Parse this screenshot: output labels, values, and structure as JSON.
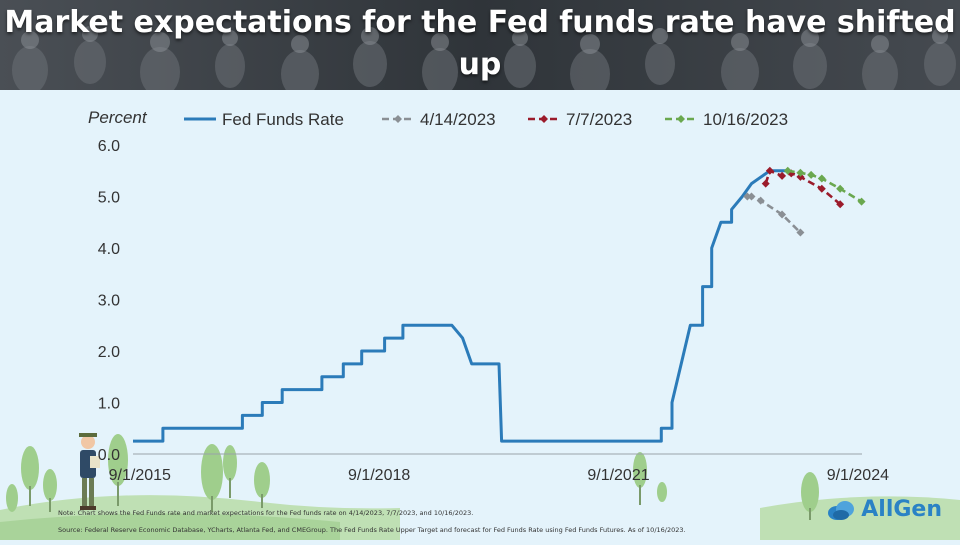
{
  "header": {
    "title": "Market expectations for the Fed funds rate have shifted up"
  },
  "footer": {
    "note": "Note: Chart shows the Fed Funds rate and market expectations for the Fed funds rate on 4/14/2023, 7/7/2023, and 10/16/2023.",
    "source": "Source: Federal Reserve Economic Database, YCharts, Atlanta Fed, and CMEGroup. The Fed Funds Rate Upper Target and forecast for Fed Funds Rate using Fed Funds Futures. As of 10/16/2023."
  },
  "logo": {
    "text": "AllGen"
  },
  "chart_data": {
    "type": "line",
    "title": "",
    "xlabel": "",
    "ylabel": "Percent",
    "ylim": [
      0,
      6
    ],
    "xlim": [
      "2015-08-01",
      "2024-09-20"
    ],
    "y_ticks": [
      "0.0",
      "1.0",
      "2.0",
      "3.0",
      "4.0",
      "5.0",
      "6.0"
    ],
    "y_tick_values": [
      0,
      1,
      2,
      3,
      4,
      5,
      6
    ],
    "x_ticks": [
      "9/1/2015",
      "9/1/2018",
      "9/1/2021",
      "9/1/2024"
    ],
    "x_tick_values": [
      "2015-09-01",
      "2018-09-01",
      "2021-09-01",
      "2024-09-01"
    ],
    "legend_position": "top",
    "grid": false,
    "series": [
      {
        "name": "Fed Funds Rate",
        "color": "#2b7bb9",
        "style": "solid",
        "points": [
          [
            "2015-08-01",
            0.25
          ],
          [
            "2015-12-16",
            0.25
          ],
          [
            "2015-12-16",
            0.5
          ],
          [
            "2016-12-14",
            0.5
          ],
          [
            "2016-12-14",
            0.75
          ],
          [
            "2017-03-15",
            0.75
          ],
          [
            "2017-03-15",
            1.0
          ],
          [
            "2017-06-14",
            1.0
          ],
          [
            "2017-06-14",
            1.25
          ],
          [
            "2017-12-13",
            1.25
          ],
          [
            "2017-12-13",
            1.5
          ],
          [
            "2018-03-21",
            1.5
          ],
          [
            "2018-03-21",
            1.75
          ],
          [
            "2018-06-13",
            1.75
          ],
          [
            "2018-06-13",
            2.0
          ],
          [
            "2018-09-26",
            2.0
          ],
          [
            "2018-09-26",
            2.25
          ],
          [
            "2018-12-19",
            2.25
          ],
          [
            "2018-12-19",
            2.5
          ],
          [
            "2019-07-31",
            2.5
          ],
          [
            "2019-09-18",
            2.25
          ],
          [
            "2019-10-30",
            1.75
          ],
          [
            "2020-03-03",
            1.75
          ],
          [
            "2020-03-15",
            0.25
          ],
          [
            "2022-03-16",
            0.25
          ],
          [
            "2022-03-16",
            0.5
          ],
          [
            "2022-05-04",
            0.5
          ],
          [
            "2022-05-04",
            1.0
          ],
          [
            "2022-06-15",
            1.75
          ],
          [
            "2022-07-27",
            2.5
          ],
          [
            "2022-09-21",
            2.5
          ],
          [
            "2022-09-21",
            3.25
          ],
          [
            "2022-11-02",
            3.25
          ],
          [
            "2022-11-02",
            4.0
          ],
          [
            "2022-12-14",
            4.5
          ],
          [
            "2023-02-01",
            4.5
          ],
          [
            "2023-02-01",
            4.75
          ],
          [
            "2023-03-22",
            5.0
          ],
          [
            "2023-05-03",
            5.25
          ],
          [
            "2023-07-26",
            5.5
          ],
          [
            "2023-10-16",
            5.5
          ]
        ]
      },
      {
        "name": "4/14/2023",
        "color": "#8a8f94",
        "style": "dashed",
        "points": [
          [
            "2023-04-14",
            5.0
          ],
          [
            "2023-05-03",
            5.0
          ],
          [
            "2023-06-14",
            4.92
          ],
          [
            "2023-09-20",
            4.65
          ],
          [
            "2023-12-13",
            4.3
          ]
        ]
      },
      {
        "name": "7/7/2023",
        "color": "#9b1b2b",
        "style": "dashed",
        "points": [
          [
            "2023-07-07",
            5.25
          ],
          [
            "2023-07-26",
            5.5
          ],
          [
            "2023-09-20",
            5.4
          ],
          [
            "2023-11-01",
            5.45
          ],
          [
            "2023-12-13",
            5.38
          ],
          [
            "2024-03-20",
            5.15
          ],
          [
            "2024-06-12",
            4.85
          ]
        ]
      },
      {
        "name": "10/16/2023",
        "color": "#6aa84f",
        "style": "dashed",
        "points": [
          [
            "2023-10-16",
            5.5
          ],
          [
            "2023-12-13",
            5.46
          ],
          [
            "2024-01-31",
            5.42
          ],
          [
            "2024-03-20",
            5.35
          ],
          [
            "2024-06-12",
            5.15
          ],
          [
            "2024-09-18",
            4.9
          ]
        ]
      }
    ]
  }
}
